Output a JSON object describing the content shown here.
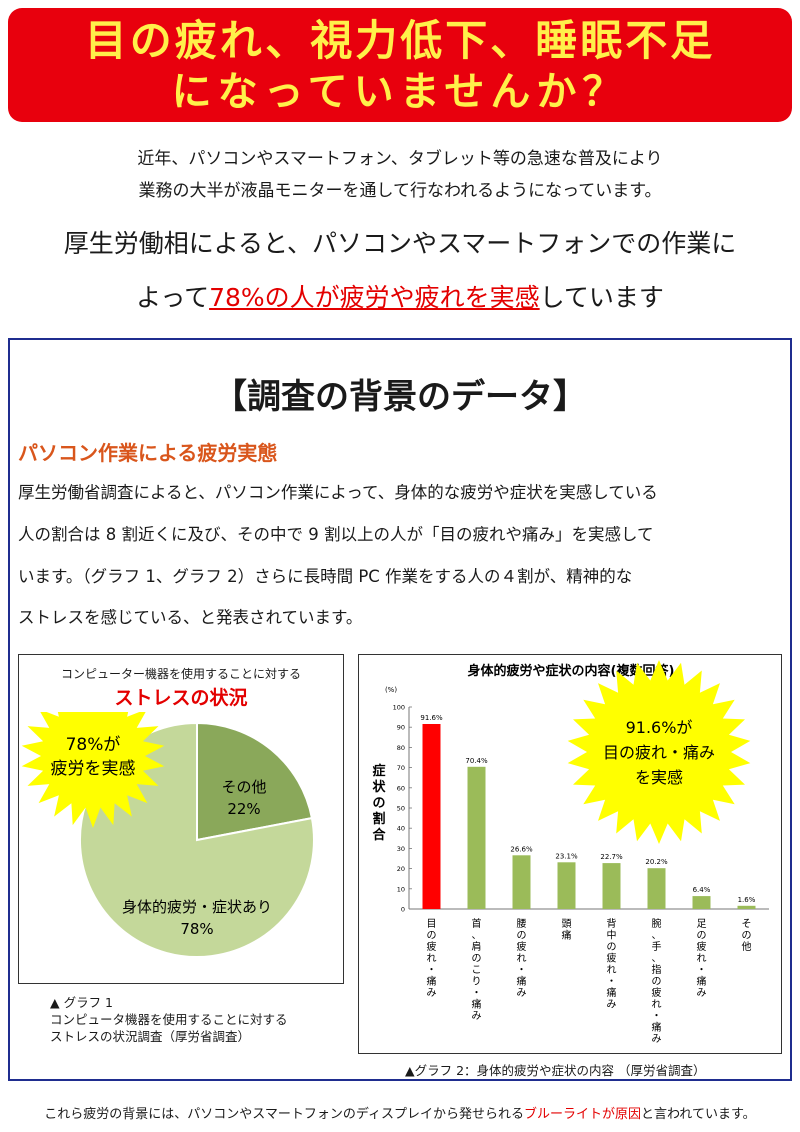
{
  "banner": {
    "line1": "目の疲れ、視力低下、睡眠不足",
    "line2": "になっていませんか？"
  },
  "intro": {
    "line1": "近年、パソコンやスマートフォン、タブレット等の急速な普及により",
    "line2": "業務の大半が液晶モニターを通して行なわれるようになっています。"
  },
  "headline": {
    "line1": "厚生労働相によると、パソコンやスマートフォンでの作業に",
    "line2_pre": "よって",
    "line2_highlight": "78%の人が疲労や疲れを実感",
    "line2_post": "しています"
  },
  "section": {
    "title": "【調査の背景のデータ】",
    "subtitle": "パソコン作業による疲労実態",
    "paragraph": [
      "厚生労働省調査によると、パソコン作業によって、身体的な疲労や症状を実感している",
      "人の割合は 8 割近くに及び、その中で 9 割以上の人が「目の疲れや痛み」を実感して",
      "います。（グラフ 1、グラフ 2）さらに長時間 PC 作業をする人の４割が、精神的な",
      "ストレスを感じている、と発表されています。"
    ]
  },
  "graph1": {
    "heading": "コンピューター機器を使用することに対する",
    "heading_red": "ストレスの状況",
    "burst_line1": "78%が",
    "burst_line2": "疲労を実感",
    "caption": [
      "▲ グラフ 1",
      "コンピュータ機器を使用することに対する",
      "ストレスの状況調査（厚労省調査）"
    ]
  },
  "graph2": {
    "burst_line1": "91.6%が",
    "burst_line2": "目の疲れ・痛み",
    "burst_line3": "を実感",
    "caption": "▲グラフ 2：身体的疲労や症状の内容 （厚労省調査）"
  },
  "footer": {
    "pre": "これら疲労の背景には、パソコンやスマートフォンのディスプレイから発せられる",
    "highlight": "ブルーライトが原因",
    "post": "と言われています。"
  },
  "colors": {
    "banner_bg": "#e8000d",
    "banner_text": "#fff04a",
    "accent_red": "#e30000",
    "subtitle_orange": "#d9561c",
    "frame_blue": "#1f2d8f",
    "pie_dark": "#8aa85a",
    "pie_light": "#c4d89a",
    "bar_red": "#ff0000",
    "bar_green": "#9bbb59",
    "burst_yellow": "#ffff00"
  },
  "chart_data": [
    {
      "type": "pie",
      "title": "コンピューター機器を使用することに対するストレスの状況",
      "slices": [
        {
          "label": "その他",
          "value": 22,
          "value_label": "22%"
        },
        {
          "label": "身体的疲労・症状あり",
          "value": 78,
          "value_label": "78%"
        }
      ]
    },
    {
      "type": "bar",
      "title": "身体的疲労や症状の内容(複数回答)",
      "unit": "(%)",
      "ylabel": "症状の割合",
      "ylim": [
        0,
        100
      ],
      "yticks": [
        0,
        10,
        20,
        30,
        40,
        50,
        60,
        70,
        80,
        90,
        100
      ],
      "categories": [
        "目の疲れ・痛み",
        "首、肩のこり・痛み",
        "腰の疲れ・痛み",
        "頭痛",
        "背中の疲れ・痛み",
        "腕、手、指の疲れ・痛み",
        "足の疲れ・痛み",
        "その他"
      ],
      "values": [
        91.6,
        70.4,
        26.6,
        23.1,
        22.7,
        20.2,
        6.4,
        1.6
      ],
      "value_labels": [
        "91.6%",
        "70.4%",
        "26.6%",
        "23.1%",
        "22.7%",
        "20.2%",
        "6.4%",
        "1.6%"
      ],
      "highlight_index": 0
    }
  ]
}
